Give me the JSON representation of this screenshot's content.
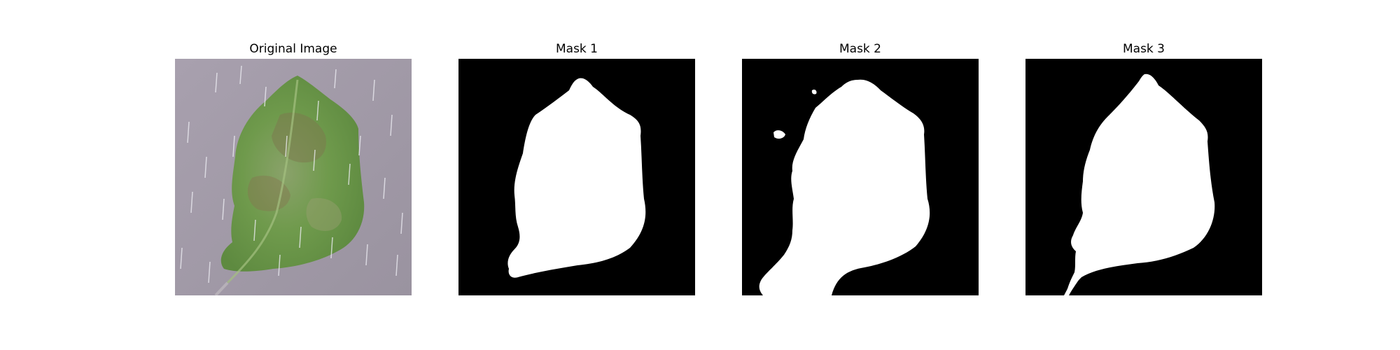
{
  "figure": {
    "panels": [
      {
        "title": "Original Image"
      },
      {
        "title": "Mask 1"
      },
      {
        "title": "Mask 2"
      },
      {
        "title": "Mask 3"
      }
    ]
  },
  "colors": {
    "background_gray": "#a29aa8",
    "leaf_green": "#74a050",
    "mask_black": "#000000",
    "mask_white": "#ffffff"
  }
}
